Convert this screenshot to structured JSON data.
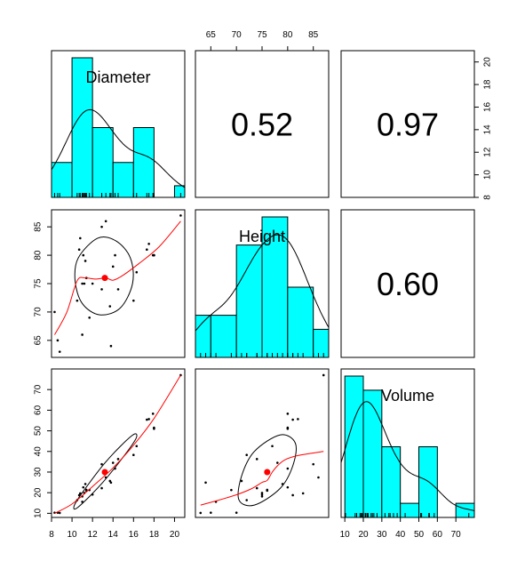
{
  "chart_data": {
    "type": "scatter",
    "variables": [
      {
        "name": "Diameter",
        "range": [
          8,
          21
        ],
        "ticks": [
          8,
          10,
          12,
          14,
          16,
          18,
          20
        ],
        "tick_labels": [
          "8",
          "10",
          "12",
          "14",
          "16",
          "18",
          "20"
        ],
        "values": [
          8.3,
          8.6,
          8.8,
          10.5,
          10.7,
          10.8,
          11.0,
          11.0,
          11.1,
          11.2,
          11.3,
          11.4,
          11.4,
          11.7,
          12.0,
          12.9,
          12.9,
          13.3,
          13.7,
          13.8,
          14.0,
          14.2,
          14.5,
          16.0,
          16.3,
          17.3,
          17.5,
          17.9,
          18.0,
          18.0,
          20.6
        ],
        "histogram": {
          "breaks": [
            8,
            10,
            12,
            14,
            16,
            18,
            20,
            22
          ],
          "counts": [
            3,
            12,
            6,
            3,
            6,
            0,
            1
          ]
        }
      },
      {
        "name": "Height",
        "range": [
          62,
          88
        ],
        "ticks": [
          65,
          70,
          75,
          80,
          85
        ],
        "tick_labels": [
          "65",
          "70",
          "75",
          "80",
          "85"
        ],
        "values": [
          70,
          65,
          63,
          72,
          81,
          83,
          66,
          75,
          80,
          75,
          79,
          76,
          76,
          69,
          75,
          74,
          85,
          86,
          71,
          64,
          78,
          80,
          74,
          72,
          77,
          81,
          82,
          80,
          80,
          80,
          87
        ],
        "histogram": {
          "breaks": [
            60,
            65,
            70,
            75,
            80,
            85,
            90
          ],
          "counts": [
            3,
            3,
            8,
            10,
            5,
            2
          ]
        }
      },
      {
        "name": "Volume",
        "range": [
          8,
          80
        ],
        "ticks": [
          10,
          20,
          30,
          40,
          50,
          60,
          70
        ],
        "tick_labels": [
          "10",
          "20",
          "30",
          "40",
          "50",
          "60",
          "70"
        ],
        "values": [
          10.3,
          10.3,
          10.2,
          16.4,
          18.8,
          19.7,
          15.6,
          18.2,
          22.6,
          19.9,
          24.2,
          21.0,
          21.4,
          21.3,
          19.1,
          22.2,
          33.8,
          27.4,
          25.7,
          24.9,
          34.5,
          31.7,
          36.3,
          38.3,
          42.6,
          55.4,
          55.7,
          58.3,
          51.5,
          51.0,
          77.0
        ],
        "histogram": {
          "breaks": [
            10,
            20,
            30,
            40,
            50,
            60,
            70,
            80
          ],
          "counts": [
            10,
            9,
            5,
            1,
            5,
            0,
            1
          ]
        }
      }
    ],
    "correlations": [
      {
        "row": 0,
        "col": 1,
        "label": "0.52"
      },
      {
        "row": 0,
        "col": 2,
        "label": "0.97"
      },
      {
        "row": 1,
        "col": 2,
        "label": "0.60"
      }
    ],
    "lower_panels": [
      {
        "row": 1,
        "col": 0,
        "mean": [
          13.2,
          76
        ],
        "loess": [
          [
            8.3,
            66
          ],
          [
            9.5,
            70
          ],
          [
            10.5,
            75.5
          ],
          [
            11.3,
            76
          ],
          [
            12.3,
            75.8
          ],
          [
            13.3,
            76
          ],
          [
            14.0,
            75.6
          ],
          [
            15.0,
            76.5
          ],
          [
            16.5,
            78.5
          ],
          [
            18.5,
            81.5
          ],
          [
            20.6,
            86
          ]
        ],
        "ellipse": [
          [
            12.5,
            83
          ],
          [
            14.3,
            82.5
          ],
          [
            15.7,
            79.5
          ],
          [
            15.9,
            75
          ],
          [
            14.7,
            70.7
          ],
          [
            12.7,
            69.5
          ],
          [
            11.0,
            71.5
          ],
          [
            10.3,
            75.5
          ],
          [
            10.6,
            79.5
          ]
        ]
      },
      {
        "row": 2,
        "col": 0,
        "mean": [
          13.2,
          30
        ],
        "loess": [
          [
            8.3,
            10
          ],
          [
            10,
            14.5
          ],
          [
            12,
            23
          ],
          [
            14,
            32
          ],
          [
            16,
            43
          ],
          [
            18,
            56
          ],
          [
            20.6,
            77
          ]
        ],
        "ellipse": [
          [
            16.3,
            47
          ],
          [
            15.8,
            47.5
          ],
          [
            13.3,
            35
          ],
          [
            11.0,
            20
          ],
          [
            10.2,
            13.5
          ],
          [
            10.6,
            13
          ],
          [
            13.0,
            25
          ],
          [
            15.4,
            40
          ]
        ]
      },
      {
        "row": 2,
        "col": 1,
        "mean": [
          76,
          30
        ],
        "loess": [
          [
            63,
            14
          ],
          [
            66,
            16
          ],
          [
            70,
            19
          ],
          [
            73,
            22
          ],
          [
            75,
            25
          ],
          [
            76,
            26
          ],
          [
            77,
            30
          ],
          [
            78,
            33
          ],
          [
            79.5,
            36
          ],
          [
            82,
            38
          ],
          [
            87,
            40
          ]
        ],
        "ellipse": [
          [
            78.5,
            48
          ],
          [
            81.5,
            44
          ],
          [
            81,
            33
          ],
          [
            78.5,
            22
          ],
          [
            73.5,
            14
          ],
          [
            70.5,
            16.5
          ],
          [
            71,
            28
          ],
          [
            73.5,
            40
          ]
        ]
      }
    ],
    "outer_axes": {
      "top": "Height",
      "right": "Diameter",
      "left": [
        "Height",
        "Volume"
      ],
      "bottom": [
        "Diameter",
        "Volume"
      ]
    },
    "colors": {
      "hist_fill": "#00ffff",
      "loess": "#ff0000",
      "mean": "#ff0000",
      "points": "#000000"
    }
  }
}
